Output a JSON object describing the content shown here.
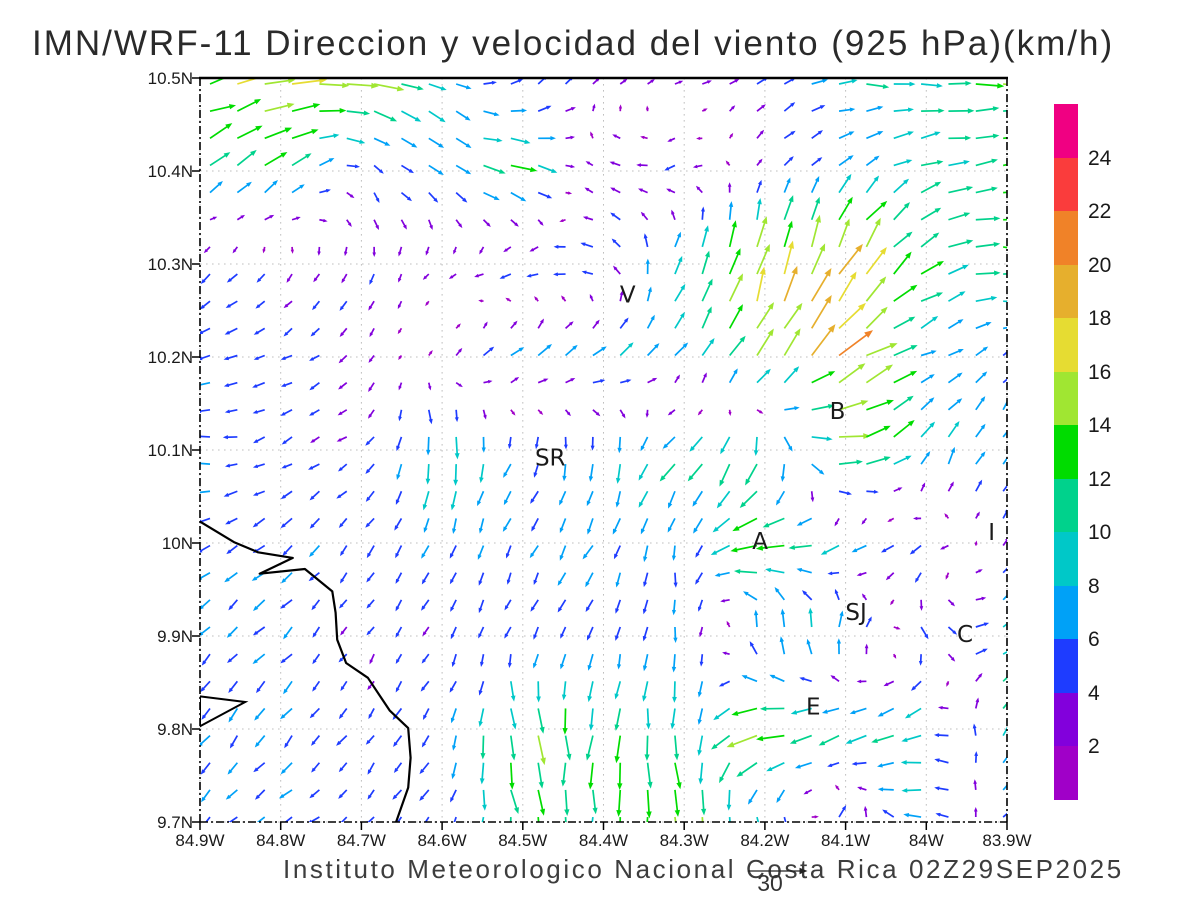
{
  "title": "IMN/WRF-11 Direccion y velocidad del viento (925 hPa)(km/h)",
  "footer": {
    "credit": "Instituto Meteorologico Nacional Costa Rica 02Z29SEP2025",
    "reference_value": "30"
  },
  "axes": {
    "lat_labels": [
      "10.5N",
      "10.4N",
      "10.3N",
      "10.2N",
      "10.1N",
      "10N",
      "9.9N",
      "9.8N",
      "9.7N"
    ],
    "lon_labels": [
      "84.9W",
      "84.8W",
      "84.7W",
      "84.6W",
      "84.5W",
      "84.4W",
      "84.3W",
      "84.2W",
      "84.1W",
      "84W",
      "83.9W"
    ]
  },
  "colorbar": {
    "tick_values": [
      "24",
      "22",
      "20",
      "18",
      "16",
      "14",
      "12",
      "10",
      "8",
      "6",
      "4",
      "2"
    ],
    "colors_top_to_bottom": [
      "#F00082",
      "#FA3C3C",
      "#F08228",
      "#E6AF2D",
      "#E6DC32",
      "#A0E632",
      "#00DC00",
      "#00D28C",
      "#00C8C8",
      "#00A1F7",
      "#1E3CFF",
      "#8200DC",
      "#A000C8"
    ]
  },
  "stations": [
    {
      "label": "V",
      "lon_w": 84.37,
      "lat_n": 10.267
    },
    {
      "label": "SR",
      "lon_w": 84.466,
      "lat_n": 10.092
    },
    {
      "label": "B",
      "lon_w": 84.11,
      "lat_n": 10.142
    },
    {
      "label": "A",
      "lon_w": 84.206,
      "lat_n": 10.002
    },
    {
      "label": "SJ",
      "lon_w": 84.087,
      "lat_n": 9.926
    },
    {
      "label": "C",
      "lon_w": 83.952,
      "lat_n": 9.902
    },
    {
      "label": "E",
      "lon_w": 84.14,
      "lat_n": 9.824
    },
    {
      "label": "I",
      "lon_w": 83.919,
      "lat_n": 10.012
    }
  ],
  "chart_data": {
    "type": "vector_field",
    "title": "IMN/WRF-11 Direccion y velocidad del viento (925 hPa)(km/h)",
    "units": "km/h",
    "level": "925 hPa",
    "valid_time": "02Z29SEP2025",
    "lon_w_range": [
      84.9,
      83.9
    ],
    "lat_n_range": [
      10.5,
      9.7
    ],
    "grid_lons_w": [
      84.9,
      84.8,
      84.7,
      84.6,
      84.5,
      84.4,
      84.3,
      84.2,
      84.1,
      84.0,
      83.9
    ],
    "grid_lats_n": [
      10.5,
      10.4,
      10.3,
      10.2,
      10.1,
      10.0,
      9.9,
      9.8,
      9.7
    ],
    "u_kmh": [
      [
        14,
        17,
        15,
        7,
        4,
        2,
        3,
        4,
        9,
        11,
        14
      ],
      [
        8,
        9,
        3,
        6,
        12,
        -4,
        -5,
        2,
        5,
        9,
        12
      ],
      [
        -4,
        -2,
        -1,
        -2,
        -6,
        -5,
        4,
        4,
        8,
        10,
        12
      ],
      [
        -6,
        -4,
        -3,
        2,
        6,
        6,
        5,
        8,
        16,
        6,
        4
      ],
      [
        -6,
        -4,
        -3,
        0,
        -3,
        0,
        -8,
        -2,
        16,
        5,
        3
      ],
      [
        -5,
        -5,
        -3,
        -3,
        -2,
        -4,
        0,
        -15,
        -7,
        -5,
        3
      ],
      [
        -4,
        -4,
        -2,
        -2,
        -2,
        -2,
        0,
        0,
        2,
        3,
        8
      ],
      [
        -4,
        -4,
        -3,
        -3,
        3,
        -2,
        0,
        -16,
        -8,
        -10,
        6
      ],
      [
        -4,
        -5,
        -3,
        -3,
        2,
        0,
        2,
        2,
        3,
        -9,
        5
      ]
    ],
    "v_kmh": [
      [
        3,
        4,
        -2,
        -4,
        4,
        2,
        1,
        3,
        0,
        -1,
        -2
      ],
      [
        6,
        7,
        -3,
        -4,
        -3,
        2,
        -2,
        3,
        5,
        3,
        2
      ],
      [
        -4,
        -3,
        -4,
        -2,
        -2,
        1,
        10,
        16,
        16,
        6,
        -2
      ],
      [
        -1,
        -2,
        -3,
        2,
        5,
        4,
        7,
        14,
        10,
        2,
        4
      ],
      [
        1,
        -2,
        -2,
        -12,
        -5,
        -8,
        -8,
        -12,
        2,
        8,
        6
      ],
      [
        -3,
        -4,
        -4,
        -5,
        -5,
        -6,
        -6,
        -2,
        -4,
        -3,
        3
      ],
      [
        -4,
        -4,
        -3,
        -4,
        -4,
        -5,
        -7,
        9,
        9,
        -6,
        6
      ],
      [
        -5,
        -5,
        -4,
        -5,
        -14,
        -12,
        -10,
        -3,
        -6,
        -2,
        8
      ],
      [
        -4,
        -3,
        -3,
        -4,
        -12,
        -10,
        -16,
        -8,
        6,
        1,
        5
      ]
    ],
    "speed_levels": [
      2,
      4,
      6,
      8,
      10,
      12,
      14,
      16,
      18,
      20,
      22,
      24
    ],
    "speed_colors": [
      "#A000C8",
      "#8200DC",
      "#1E3CFF",
      "#00A1F7",
      "#00C8C8",
      "#00D28C",
      "#00DC00",
      "#A0E632",
      "#E6DC32",
      "#E6AF2D",
      "#F08228",
      "#FA3C3C",
      "#F00082"
    ],
    "reference_arrow_kmh": 30,
    "coastline_lonlat": [
      [
        84.9,
        10.023
      ],
      [
        84.858,
        10.001
      ],
      [
        84.828,
        9.99
      ],
      [
        84.785,
        9.984
      ],
      [
        84.826,
        9.967
      ],
      [
        84.77,
        9.972
      ],
      [
        84.736,
        9.948
      ],
      [
        84.732,
        9.925
      ],
      [
        84.73,
        9.896
      ],
      [
        84.719,
        9.871
      ],
      [
        84.692,
        9.855
      ],
      [
        84.665,
        9.82
      ],
      [
        84.642,
        9.801
      ],
      [
        84.639,
        9.769
      ],
      [
        84.642,
        9.737
      ],
      [
        84.657,
        9.7
      ]
    ],
    "islet_lonlat": [
      [
        84.9,
        9.835
      ],
      [
        84.844,
        9.829
      ],
      [
        84.9,
        9.803
      ]
    ]
  }
}
